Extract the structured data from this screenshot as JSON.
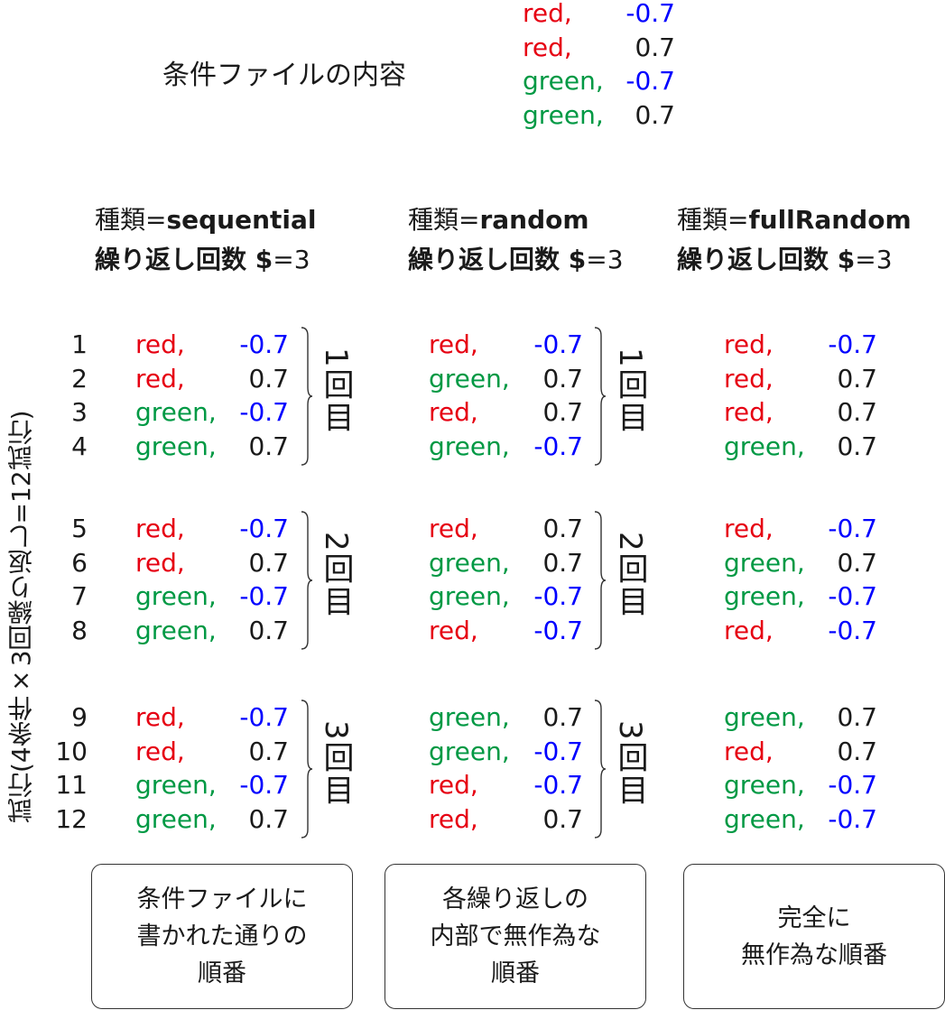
{
  "condition_file": {
    "title": "条件ファイルの内容",
    "rows": [
      {
        "color": "red",
        "value": "-0.7"
      },
      {
        "color": "red",
        "value": "0.7"
      },
      {
        "color": "green",
        "value": "-0.7"
      },
      {
        "color": "green",
        "value": "0.7"
      }
    ]
  },
  "y_axis_label": "試行(4条件×3回繰り返し=12試行)",
  "row_numbers": [
    "1",
    "2",
    "3",
    "4",
    "5",
    "6",
    "7",
    "8",
    "9",
    "10",
    "11",
    "12"
  ],
  "repetition_labels": [
    "1回目",
    "2回目",
    "3回目"
  ],
  "columns": [
    {
      "type_prefix": "種類=",
      "type_name": "sequential",
      "repeat_prefix": "繰り返し回数 $",
      "repeat_suffix": "=3",
      "rows": [
        {
          "color": "red",
          "value": "-0.7"
        },
        {
          "color": "red",
          "value": "0.7"
        },
        {
          "color": "green",
          "value": "-0.7"
        },
        {
          "color": "green",
          "value": "0.7"
        },
        {
          "color": "red",
          "value": "-0.7"
        },
        {
          "color": "red",
          "value": "0.7"
        },
        {
          "color": "green",
          "value": "-0.7"
        },
        {
          "color": "green",
          "value": "0.7"
        },
        {
          "color": "red",
          "value": "-0.7"
        },
        {
          "color": "red",
          "value": "0.7"
        },
        {
          "color": "green",
          "value": "-0.7"
        },
        {
          "color": "green",
          "value": "0.7"
        }
      ],
      "caption": [
        "条件ファイルに",
        "書かれた通りの",
        "順番"
      ]
    },
    {
      "type_prefix": "種類=",
      "type_name": "random",
      "repeat_prefix": "繰り返し回数 $",
      "repeat_suffix": "=3",
      "rows": [
        {
          "color": "red",
          "value": "-0.7"
        },
        {
          "color": "green",
          "value": "0.7"
        },
        {
          "color": "red",
          "value": "0.7"
        },
        {
          "color": "green",
          "value": "-0.7"
        },
        {
          "color": "red",
          "value": "0.7"
        },
        {
          "color": "green",
          "value": "0.7"
        },
        {
          "color": "green",
          "value": "-0.7"
        },
        {
          "color": "red",
          "value": "-0.7"
        },
        {
          "color": "green",
          "value": "0.7"
        },
        {
          "color": "green",
          "value": "-0.7"
        },
        {
          "color": "red",
          "value": "-0.7"
        },
        {
          "color": "red",
          "value": "0.7"
        }
      ],
      "caption": [
        "各繰り返しの",
        "内部で無作為な",
        "順番"
      ]
    },
    {
      "type_prefix": "種類=",
      "type_name": "fullRandom",
      "repeat_prefix": "繰り返し回数 $",
      "repeat_suffix": "=3",
      "rows": [
        {
          "color": "red",
          "value": "-0.7"
        },
        {
          "color": "red",
          "value": "0.7"
        },
        {
          "color": "red",
          "value": "0.7"
        },
        {
          "color": "green",
          "value": "0.7"
        },
        {
          "color": "red",
          "value": "-0.7"
        },
        {
          "color": "green",
          "value": "0.7"
        },
        {
          "color": "green",
          "value": "-0.7"
        },
        {
          "color": "red",
          "value": "-0.7"
        },
        {
          "color": "green",
          "value": "0.7"
        },
        {
          "color": "red",
          "value": "0.7"
        },
        {
          "color": "green",
          "value": "-0.7"
        },
        {
          "color": "green",
          "value": "-0.7"
        }
      ],
      "caption": [
        "完全に",
        "無作為な順番"
      ]
    }
  ]
}
